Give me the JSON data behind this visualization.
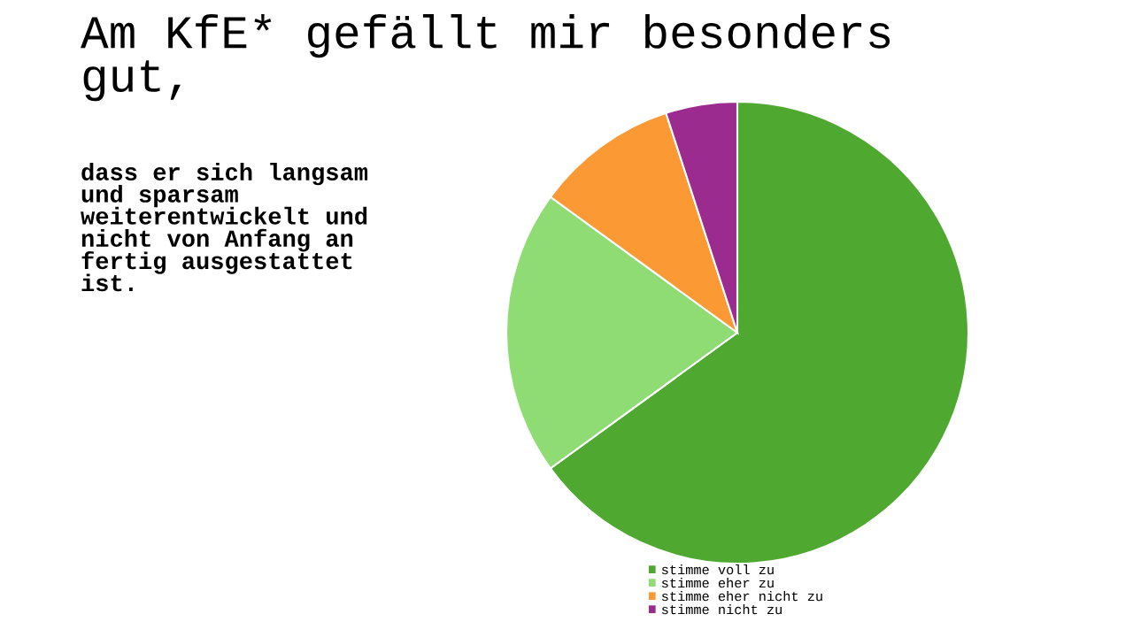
{
  "chart_data": {
    "type": "pie",
    "title": "Am KfE* gefällt mir besonders\ngut,",
    "subtitle": "dass er sich langsam\nund sparsam\nweiterentwickelt und\nnicht von Anfang an\nfertig ausgestattet\nist.",
    "categories": [
      "stimme voll zu",
      "stimme eher zu",
      "stimme eher nicht zu",
      "stimme nicht zu"
    ],
    "values": [
      65,
      20,
      10,
      5
    ],
    "colors": [
      "#4fa82f",
      "#8fdb74",
      "#fb9a35",
      "#9c2b90"
    ],
    "legend": "bottom"
  }
}
